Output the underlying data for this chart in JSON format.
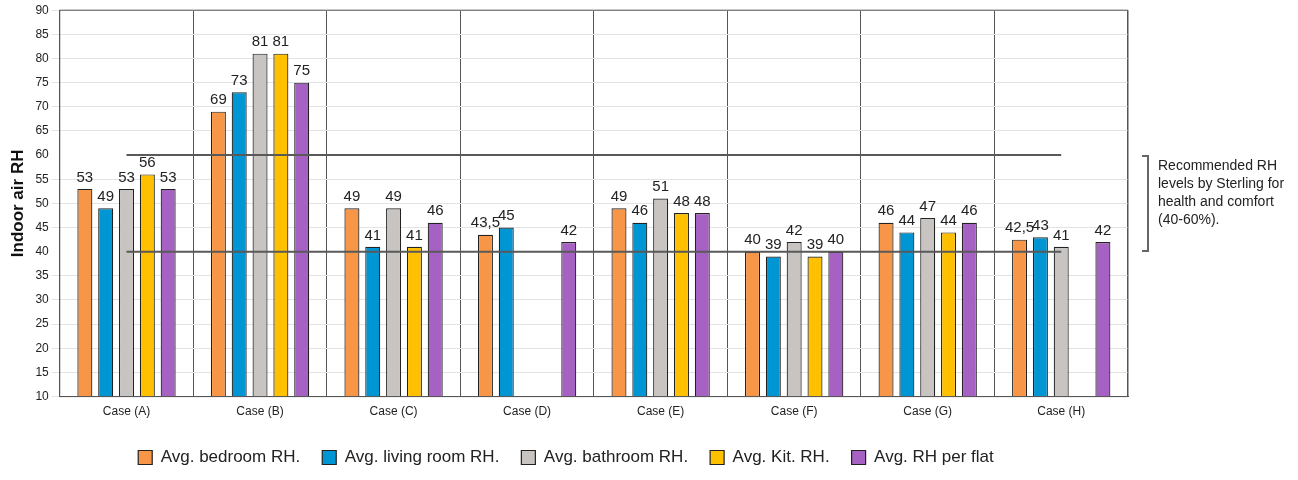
{
  "chart_data": {
    "type": "bar",
    "ylabel": "Indoor air RH",
    "categories": [
      "Case (A)",
      "Case (B)",
      "Case (C)",
      "Case (D)",
      "Case (E)",
      "Case (F)",
      "Case (G)",
      "Case (H)"
    ],
    "series": [
      {
        "name": "Avg. bedroom RH.",
        "color": "#f79646",
        "values": [
          53,
          69,
          49,
          43.5,
          49,
          40,
          46,
          42.5
        ],
        "value_labels": [
          "53",
          "69",
          "49",
          "43,5",
          "49",
          "40",
          "46",
          "42,5"
        ]
      },
      {
        "name": "Avg. living room RH.",
        "color": "#0095d3",
        "values": [
          49,
          73,
          41,
          45,
          46,
          39,
          44,
          43
        ],
        "value_labels": [
          "49",
          "73",
          "41",
          "45",
          "46",
          "39",
          "44",
          "43"
        ]
      },
      {
        "name": "Avg. bathroom RH.",
        "color": "#c8c4c2",
        "values": [
          53,
          81,
          49,
          null,
          51,
          42,
          47,
          41
        ],
        "value_labels": [
          "53",
          "81",
          "49",
          null,
          "51",
          "42",
          "47",
          "41"
        ]
      },
      {
        "name": "Avg. Kit. RH.",
        "color": "#ffc000",
        "values": [
          56,
          81,
          41,
          null,
          48,
          39,
          44,
          null
        ],
        "value_labels": [
          "56",
          "81",
          "41",
          null,
          "48",
          "39",
          "44",
          null
        ]
      },
      {
        "name": "Avg. RH per flat",
        "color": "#a662c2",
        "values": [
          53,
          75,
          46,
          42,
          48,
          40,
          46,
          42
        ],
        "value_labels": [
          "53",
          "75",
          "46",
          "42",
          "48",
          "40",
          "46",
          "42"
        ]
      }
    ],
    "ylim": [
      10,
      90
    ],
    "yticks": [
      10,
      15,
      20,
      25,
      30,
      35,
      40,
      45,
      50,
      55,
      60,
      65,
      70,
      75,
      80,
      85,
      90
    ],
    "grid": true,
    "legend": "bottom",
    "ref_lines": [
      {
        "axis": "y",
        "value": 60,
        "color": "#595959"
      },
      {
        "axis": "y",
        "value": 40,
        "color": "#595959"
      }
    ],
    "annotations": [
      "Recommended RH levels by Sterling for health and comfort (40-60%)."
    ]
  }
}
